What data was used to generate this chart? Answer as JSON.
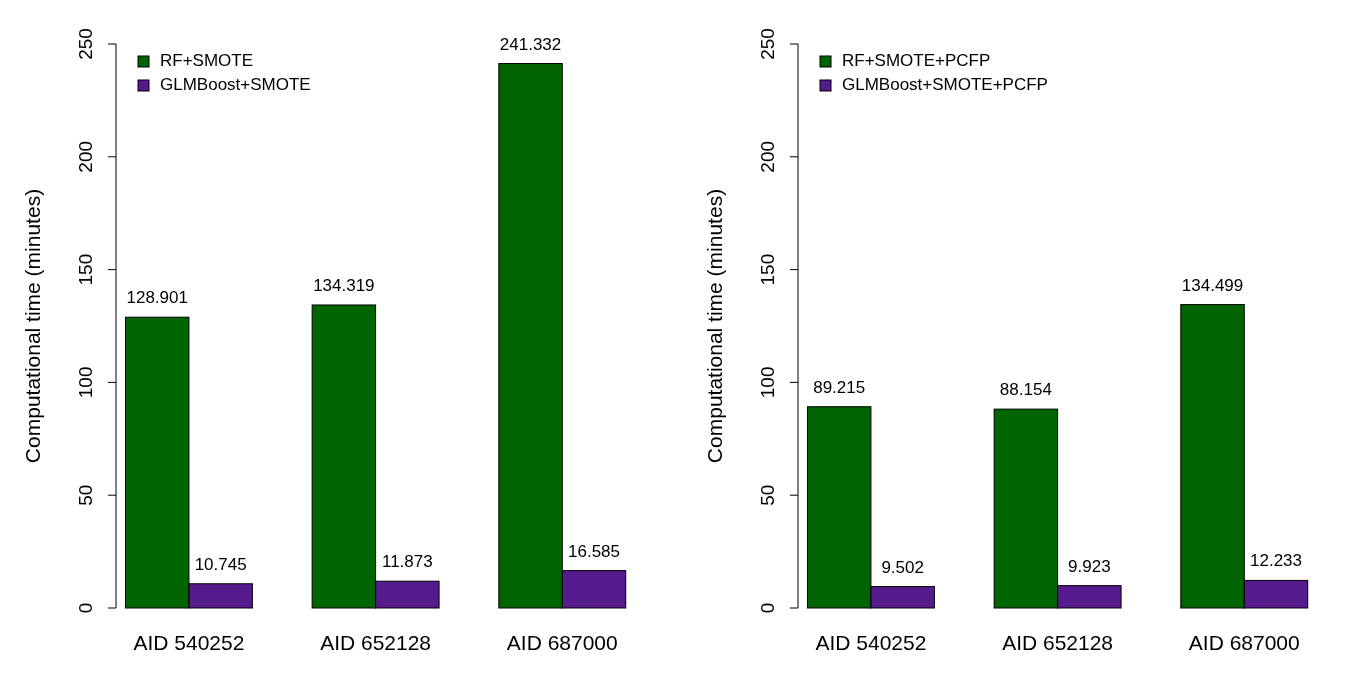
{
  "chart_data": [
    {
      "type": "bar",
      "ylabel": "Computational time (minutes)",
      "categories": [
        "AID 540252",
        "AID 652128",
        "AID 687000"
      ],
      "series": [
        {
          "name": "RF+SMOTE",
          "color": "#006400",
          "values": [
            128.901,
            134.319,
            241.332
          ]
        },
        {
          "name": "GLMBoost+SMOTE",
          "color": "#551a8b",
          "values": [
            10.745,
            11.873,
            16.585
          ]
        }
      ],
      "ylim": [
        0,
        250
      ],
      "yticks": [
        0,
        50,
        100,
        150,
        200,
        250
      ],
      "data_labels": true,
      "legend": "top left",
      "grid": false
    },
    {
      "type": "bar",
      "ylabel": "Computational time (minutes)",
      "categories": [
        "AID 540252",
        "AID 652128",
        "AID 687000"
      ],
      "series": [
        {
          "name": "RF+SMOTE+PCFP",
          "color": "#006400",
          "values": [
            89.215,
            88.154,
            134.499
          ]
        },
        {
          "name": "GLMBoost+SMOTE+PCFP",
          "color": "#551a8b",
          "values": [
            9.502,
            9.923,
            12.233
          ]
        }
      ],
      "ylim": [
        0,
        250
      ],
      "yticks": [
        0,
        50,
        100,
        150,
        200,
        250
      ],
      "data_labels": true,
      "legend": "top left",
      "grid": false
    }
  ]
}
